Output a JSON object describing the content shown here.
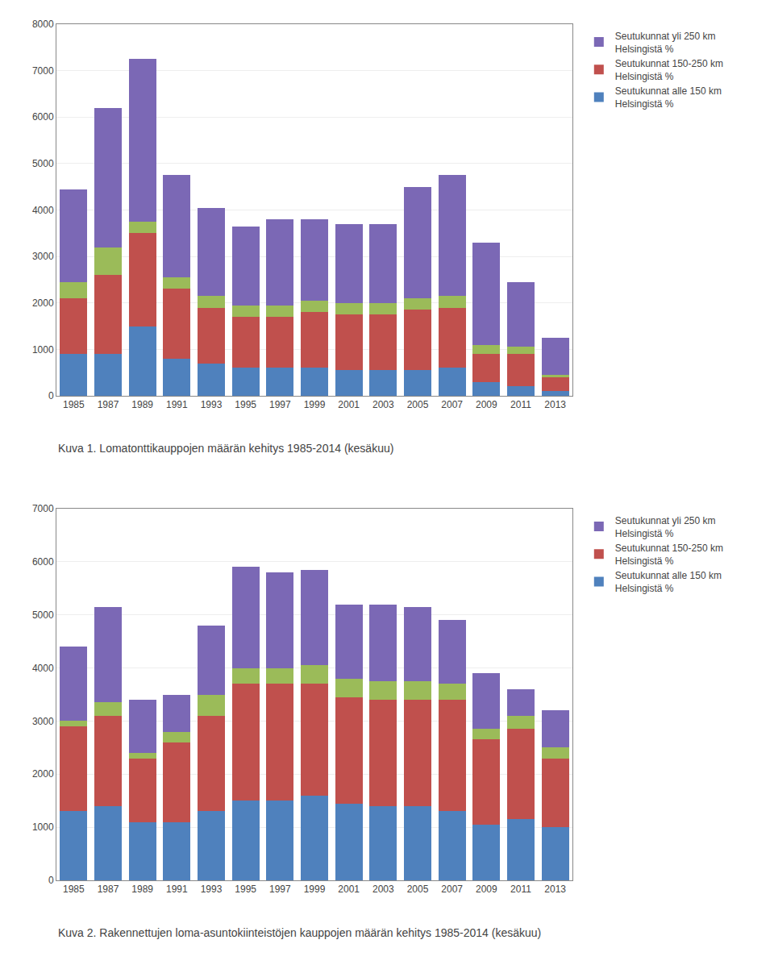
{
  "chart_data": [
    {
      "type": "bar",
      "stacked": true,
      "title": "Kuva 1. Lomatonttikauppojen määrän kehitys 1985-2014 (kesäkuu)",
      "categories": [
        "1985",
        "1987",
        "1989",
        "1991",
        "1993",
        "1995",
        "1997",
        "1999",
        "2001",
        "2003",
        "2005",
        "2007",
        "2009",
        "2011",
        "2013"
      ],
      "series": [
        {
          "name": "Seutukunnat alle 150 km\nHelsingistä %",
          "color": "#4F81BD",
          "values": [
            900,
            900,
            1500,
            800,
            700,
            600,
            600,
            600,
            550,
            550,
            550,
            600,
            300,
            200,
            100
          ]
        },
        {
          "name": "Seutukunnat 150-250 km\nHelsingistä %",
          "color": "#C0504D",
          "values": [
            1200,
            1700,
            2000,
            1500,
            1200,
            1100,
            1100,
            1200,
            1200,
            1200,
            1300,
            1300,
            600,
            700,
            300
          ]
        },
        {
          "color": "#9BBB59",
          "values": [
            350,
            600,
            250,
            250,
            250,
            250,
            250,
            250,
            250,
            250,
            250,
            250,
            200,
            150,
            50
          ]
        },
        {
          "name": "Seutukunnat yli 250 km\nHelsingistä %",
          "color": "#7B68B5",
          "values": [
            2000,
            3000,
            3500,
            2200,
            1900,
            1700,
            1850,
            1750,
            1700,
            1700,
            2400,
            2600,
            2200,
            1400,
            800
          ]
        }
      ],
      "ylim": [
        0,
        8000
      ],
      "yticks": [
        0,
        1000,
        2000,
        3000,
        4000,
        5000,
        6000,
        7000,
        8000
      ],
      "grid": true,
      "legend": "right"
    },
    {
      "type": "bar",
      "stacked": true,
      "title": "Kuva 2. Rakennettujen loma-asuntokiinteistöjen kauppojen määrän kehitys 1985-2014 (kesäkuu)",
      "categories": [
        "1985",
        "1987",
        "1989",
        "1991",
        "1993",
        "1995",
        "1997",
        "1999",
        "2001",
        "2003",
        "2005",
        "2007",
        "2009",
        "2011",
        "2013"
      ],
      "series": [
        {
          "name": "Seutukunnat alle 150 km\nHelsingistä %",
          "color": "#4F81BD",
          "values": [
            1300,
            1400,
            1100,
            1100,
            1300,
            1500,
            1500,
            1600,
            1450,
            1400,
            1400,
            1300,
            1050,
            1150,
            1000
          ]
        },
        {
          "name": "Seutukunnat 150-250 km\nHelsingistä %",
          "color": "#C0504D",
          "values": [
            1600,
            1700,
            1200,
            1500,
            1800,
            2200,
            2200,
            2100,
            2000,
            2000,
            2000,
            2100,
            1600,
            1700,
            1300
          ]
        },
        {
          "color": "#9BBB59",
          "values": [
            100,
            250,
            100,
            200,
            400,
            300,
            300,
            350,
            350,
            350,
            350,
            300,
            200,
            250,
            200
          ]
        },
        {
          "name": "Seutukunnat yli 250 km\nHelsingistä %",
          "color": "#7B68B5",
          "values": [
            1400,
            1800,
            1000,
            700,
            1300,
            1900,
            1800,
            1800,
            1400,
            1450,
            1400,
            1200,
            1050,
            500,
            700
          ]
        }
      ],
      "ylim": [
        0,
        7000
      ],
      "yticks": [
        0,
        1000,
        2000,
        3000,
        4000,
        5000,
        6000,
        7000
      ],
      "grid": true,
      "legend": "right"
    }
  ]
}
